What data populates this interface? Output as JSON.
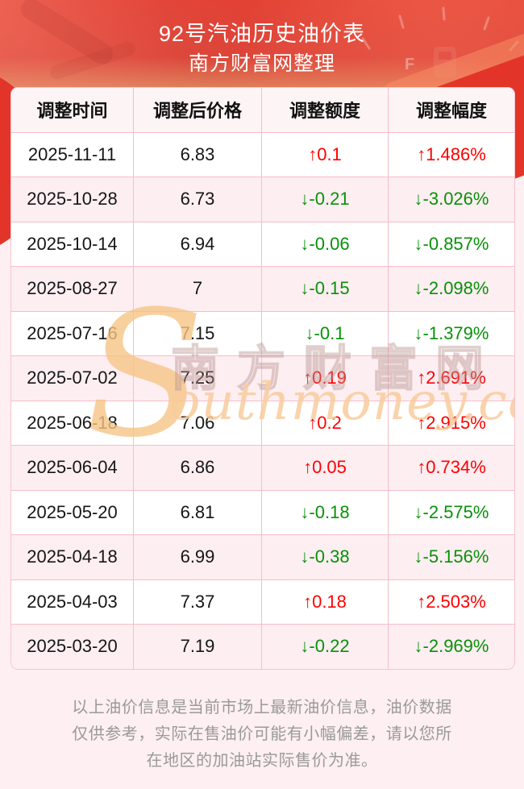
{
  "header": {
    "title": "92号汽油历史油价表",
    "subtitle": "南方财富网整理"
  },
  "chart_data": {
    "type": "table",
    "title": "92号汽油历史油价表",
    "subtitle": "南方财富网整理",
    "columns": [
      "调整时间",
      "调整后价格",
      "调整额度",
      "调整幅度"
    ],
    "rows": [
      [
        "2025-11-11",
        "6.83",
        "↑0.1",
        "↑1.486%"
      ],
      [
        "2025-10-28",
        "6.73",
        "↓-0.21",
        "↓-3.026%"
      ],
      [
        "2025-10-14",
        "6.94",
        "↓-0.06",
        "↓-0.857%"
      ],
      [
        "2025-08-27",
        "7",
        "↓-0.15",
        "↓-2.098%"
      ],
      [
        "2025-07-16",
        "7.15",
        "↓-0.1",
        "↓-1.379%"
      ],
      [
        "2025-07-02",
        "7.25",
        "↑0.19",
        "↑2.691%"
      ],
      [
        "2025-06-18",
        "7.06",
        "↑0.2",
        "↑2.915%"
      ],
      [
        "2025-06-04",
        "6.86",
        "↑0.05",
        "↑0.734%"
      ],
      [
        "2025-05-20",
        "6.81",
        "↓-0.18",
        "↓-2.575%"
      ],
      [
        "2025-04-18",
        "6.99",
        "↓-0.38",
        "↓-5.156%"
      ],
      [
        "2025-04-03",
        "7.37",
        "↑0.18",
        "↑2.503%"
      ],
      [
        "2025-03-20",
        "7.19",
        "↓-0.22",
        "↓-2.969%"
      ]
    ],
    "legend": "up arrow = price increase (red), down arrow = price decrease (green)"
  },
  "watermark": {
    "en_initial": "S",
    "cn": "南方财富网",
    "en_rest": "outhmoney.com"
  },
  "footer": {
    "disclaimer": "以上油价信息是当前市场上最新油价信息，油价数据仅供参考，实际在售油价可能有小幅偏差，请以您所在地区的加油站实际售价为准。"
  },
  "colors": {
    "up_red": "#fe0101",
    "down_green": "#089108",
    "banner_red": "#dd362b",
    "banner_tan": "#edd9ac",
    "table_border_pink": "#f9bcc8",
    "row_alt_pink": "#fdeef2",
    "page_bg": "#fdeff2",
    "footer_gray": "#9a9a9a"
  }
}
